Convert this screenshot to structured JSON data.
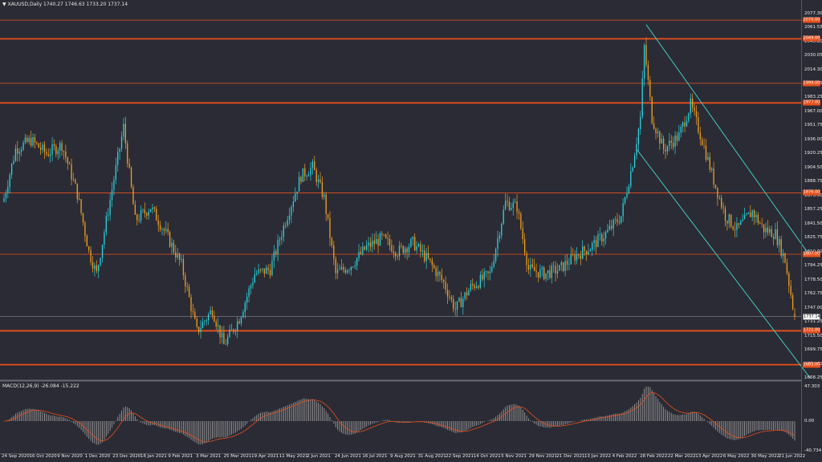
{
  "header": {
    "menu_icon": "triangle-down-icon",
    "title_text": "XAUUSD,Daily  1740.27 1746.63 1733.20 1737.14"
  },
  "price_axis": {
    "ticks": [
      "2077.30",
      "2061.55",
      "2045.80",
      "2030.05",
      "2014.30",
      "1998.55",
      "1983.25",
      "1967.00",
      "1951.75",
      "1936.00",
      "1920.25",
      "1904.50",
      "1888.75",
      "1873.00",
      "1857.25",
      "1841.50",
      "1825.75",
      "1810.00",
      "1794.25",
      "1778.50",
      "1762.75",
      "1747.00",
      "1731.25",
      "1715.50",
      "1699.75",
      "1684.00",
      "1668.25"
    ],
    "ymax": 2077.3,
    "ymin": 1668.25
  },
  "macd": {
    "label": "MACD(12,26,9) -26.084 -15.222",
    "ticks": [
      "47.303",
      "0.00",
      "-40.734"
    ],
    "ymax": 47.303,
    "ymin": -40.734
  },
  "date_axis": {
    "labels": [
      "24 Sep 2020",
      "16 Oct 2020",
      "9 Nov 2020",
      "1 Dec 2020",
      "23 Dec 2020",
      "18 Jan 2021",
      "9 Feb 2021",
      "3 Mar 2021",
      "25 Mar 2021",
      "19 Apr 2021",
      "11 May 2021",
      "2 Jun 2021",
      "24 Jun 2021",
      "16 Jul 2021",
      "9 Aug 2021",
      "31 Aug 2021",
      "22 Sep 2021",
      "14 Oct 2021",
      "5 Nov 2021",
      "29 Nov 2021",
      "21 Dec 2021",
      "13 Jan 2022",
      "4 Feb 2022",
      "28 Feb 2022",
      "22 Mar 2022",
      "13 Apr 2022",
      "6 May 2022",
      "30 May 2022",
      "21 Jun 2022"
    ]
  },
  "levels": [
    {
      "price": 2070.0,
      "label": "2070.00",
      "weight": "thin"
    },
    {
      "price": 2049.0,
      "label": "2049.00",
      "weight": "thick"
    },
    {
      "price": 1999.0,
      "label": "1999.00",
      "weight": "thin"
    },
    {
      "price": 1977.0,
      "label": "1977.00",
      "weight": "thick"
    },
    {
      "price": 1876.0,
      "label": "1876.00",
      "weight": "thin"
    },
    {
      "price": 1807.0,
      "label": "1807.00",
      "weight": "thin"
    },
    {
      "price": 1721.0,
      "label": "1721.00",
      "weight": "thick"
    },
    {
      "price": 1683.0,
      "label": "1683.00",
      "weight": "thick"
    }
  ],
  "current_price": {
    "price": 1737.14,
    "label": "1737.14"
  },
  "colors": {
    "background": "#2b2b35",
    "bull": "#2ad4e0",
    "bear": "#f0a020",
    "level": "#e8501c",
    "channel": "#40c8c0",
    "macd_hist": "#9a9a9a",
    "macd_signal": "#e8501c",
    "grid_sep": "#6a6a72"
  },
  "chart_data": {
    "type": "candlestick",
    "symbol": "XAUUSD",
    "timeframe": "Daily",
    "last_bar": {
      "open": 1740.27,
      "high": 1746.63,
      "low": 1733.2,
      "close": 1737.14
    },
    "anchors": [
      {
        "bar": 0,
        "price": 1870
      },
      {
        "bar": 6,
        "price": 1925
      },
      {
        "bar": 14,
        "price": 1935
      },
      {
        "bar": 22,
        "price": 1920
      },
      {
        "bar": 30,
        "price": 1930
      },
      {
        "bar": 38,
        "price": 1875
      },
      {
        "bar": 44,
        "price": 1810
      },
      {
        "bar": 48,
        "price": 1785
      },
      {
        "bar": 56,
        "price": 1880
      },
      {
        "bar": 62,
        "price": 1950
      },
      {
        "bar": 68,
        "price": 1845
      },
      {
        "bar": 76,
        "price": 1860
      },
      {
        "bar": 84,
        "price": 1830
      },
      {
        "bar": 92,
        "price": 1795
      },
      {
        "bar": 100,
        "price": 1720
      },
      {
        "bar": 108,
        "price": 1745
      },
      {
        "bar": 114,
        "price": 1705
      },
      {
        "bar": 122,
        "price": 1735
      },
      {
        "bar": 130,
        "price": 1785
      },
      {
        "bar": 138,
        "price": 1790
      },
      {
        "bar": 146,
        "price": 1845
      },
      {
        "bar": 154,
        "price": 1895
      },
      {
        "bar": 160,
        "price": 1905
      },
      {
        "bar": 166,
        "price": 1870
      },
      {
        "bar": 172,
        "price": 1785
      },
      {
        "bar": 180,
        "price": 1795
      },
      {
        "bar": 188,
        "price": 1815
      },
      {
        "bar": 196,
        "price": 1825
      },
      {
        "bar": 204,
        "price": 1810
      },
      {
        "bar": 212,
        "price": 1820
      },
      {
        "bar": 220,
        "price": 1800
      },
      {
        "bar": 228,
        "price": 1775
      },
      {
        "bar": 234,
        "price": 1745
      },
      {
        "bar": 242,
        "price": 1770
      },
      {
        "bar": 252,
        "price": 1785
      },
      {
        "bar": 260,
        "price": 1865
      },
      {
        "bar": 266,
        "price": 1860
      },
      {
        "bar": 272,
        "price": 1790
      },
      {
        "bar": 280,
        "price": 1785
      },
      {
        "bar": 288,
        "price": 1790
      },
      {
        "bar": 296,
        "price": 1805
      },
      {
        "bar": 304,
        "price": 1815
      },
      {
        "bar": 312,
        "price": 1830
      },
      {
        "bar": 320,
        "price": 1850
      },
      {
        "bar": 326,
        "price": 1910
      },
      {
        "bar": 330,
        "price": 1960
      },
      {
        "bar": 332,
        "price": 2040
      },
      {
        "bar": 336,
        "price": 1960
      },
      {
        "bar": 342,
        "price": 1925
      },
      {
        "bar": 350,
        "price": 1940
      },
      {
        "bar": 356,
        "price": 1975
      },
      {
        "bar": 362,
        "price": 1935
      },
      {
        "bar": 368,
        "price": 1890
      },
      {
        "bar": 374,
        "price": 1850
      },
      {
        "bar": 380,
        "price": 1835
      },
      {
        "bar": 388,
        "price": 1855
      },
      {
        "bar": 394,
        "price": 1835
      },
      {
        "bar": 400,
        "price": 1830
      },
      {
        "bar": 405,
        "price": 1800
      },
      {
        "bar": 410,
        "price": 1737
      }
    ],
    "channel": {
      "upper": [
        {
          "bar": 333,
          "price": 2065
        },
        {
          "bar": 418,
          "price": 1805
        }
      ],
      "lower": [
        {
          "bar": 328,
          "price": 1925
        },
        {
          "bar": 418,
          "price": 1668
        }
      ]
    }
  }
}
